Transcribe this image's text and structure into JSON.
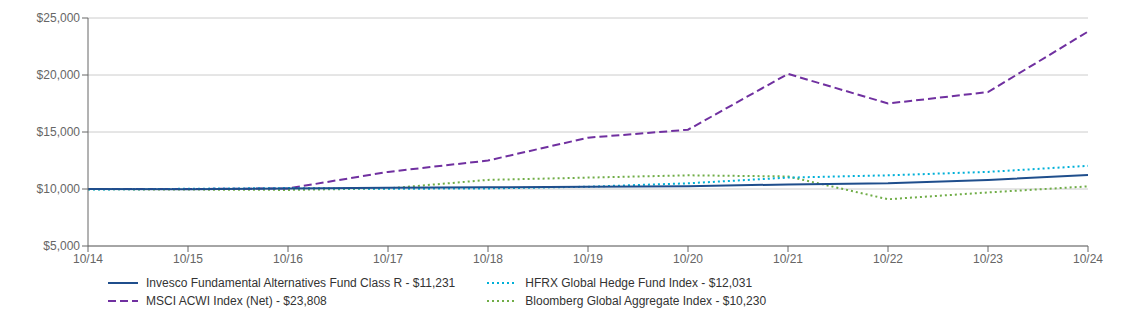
{
  "chart_data": {
    "type": "line",
    "title": "",
    "categories": [
      "10/14",
      "10/15",
      "10/16",
      "10/17",
      "10/18",
      "10/19",
      "10/20",
      "10/21",
      "10/22",
      "10/23",
      "10/24"
    ],
    "series": [
      {
        "name": "Invesco Fundamental Alternatives Fund Class R - $11,231",
        "color": "#1f4e8c",
        "line_style": "solid",
        "values": [
          10000,
          9980,
          10050,
          10100,
          10150,
          10200,
          10250,
          10400,
          10500,
          10800,
          11231
        ]
      },
      {
        "name": "HFRX Global Hedge Fund Index - $12,031",
        "color": "#00b0d8",
        "line_style": "dotted",
        "values": [
          9950,
          10020,
          10080,
          10020,
          10050,
          10200,
          10500,
          11000,
          11200,
          11500,
          12031
        ]
      },
      {
        "name": "MSCI ACWI Index (Net) - $23,808",
        "color": "#7030a0",
        "line_style": "dashed",
        "values": [
          10000,
          10000,
          10050,
          11500,
          12500,
          14500,
          15200,
          20100,
          17500,
          18500,
          23808
        ]
      },
      {
        "name": "Bloomberg Global Aggregate Index - $10,230",
        "color": "#70ad47",
        "line_style": "dotted",
        "values": [
          9980,
          9950,
          9920,
          10050,
          10800,
          11000,
          11200,
          11100,
          9100,
          9700,
          10230
        ]
      }
    ],
    "ylim": [
      5000,
      25000
    ],
    "yticks": [
      {
        "value": 5000,
        "label": "$5,000"
      },
      {
        "value": 10000,
        "label": "$10,000"
      },
      {
        "value": 15000,
        "label": "$15,000"
      },
      {
        "value": 20000,
        "label": "$20,000"
      },
      {
        "value": 25000,
        "label": "$25,000"
      }
    ],
    "grid": true
  }
}
